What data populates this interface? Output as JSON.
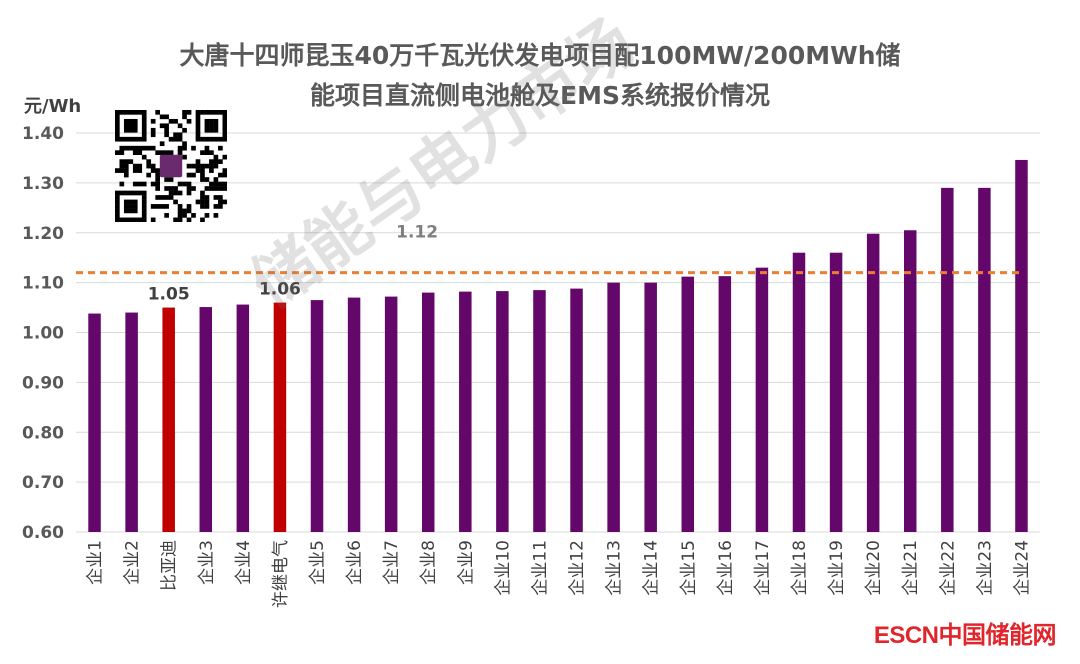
{
  "chart_data": {
    "type": "bar",
    "title_line1": "大唐十四师昆玉40万千瓦光伏发电项目配100MW/200MWh储",
    "title_line2": "能项目直流侧电池舱及EMS系统报价情况",
    "ylabel": "元/Wh",
    "ylim": [
      0.6,
      1.4
    ],
    "yticks": [
      "0.60",
      "0.70",
      "0.80",
      "0.90",
      "1.00",
      "1.10",
      "1.20",
      "1.30",
      "1.40"
    ],
    "categories": [
      "企业1",
      "企业2",
      "比亚迪",
      "企业3",
      "企业4",
      "许继电气",
      "企业5",
      "企业6",
      "企业7",
      "企业8",
      "企业9",
      "企业10",
      "企业11",
      "企业12",
      "企业13",
      "企业14",
      "企业15",
      "企业16",
      "企业17",
      "企业18",
      "企业19",
      "企业20",
      "企业21",
      "企业22",
      "企业23",
      "企业24"
    ],
    "values": [
      1.038,
      1.04,
      1.05,
      1.051,
      1.056,
      1.06,
      1.065,
      1.07,
      1.072,
      1.08,
      1.082,
      1.083,
      1.085,
      1.088,
      1.1,
      1.1,
      1.112,
      1.113,
      1.13,
      1.16,
      1.16,
      1.198,
      1.205,
      1.29,
      1.29,
      1.346
    ],
    "highlight": [
      false,
      false,
      true,
      false,
      false,
      true,
      false,
      false,
      false,
      false,
      false,
      false,
      false,
      false,
      false,
      false,
      false,
      false,
      false,
      false,
      false,
      false,
      false,
      false,
      false,
      false
    ],
    "data_labels": {
      "2": "1.05",
      "5": "1.06"
    },
    "average": {
      "value": 1.12,
      "label": "1.12"
    },
    "grid": true
  },
  "colors": {
    "bar": "#63086a",
    "highlight": "#c00000",
    "average_line": "#ed7d31",
    "grid": "#d9d9d9",
    "text": "#595959"
  },
  "brand": "ESCN中国储能网",
  "watermark": "储能与电力市场"
}
